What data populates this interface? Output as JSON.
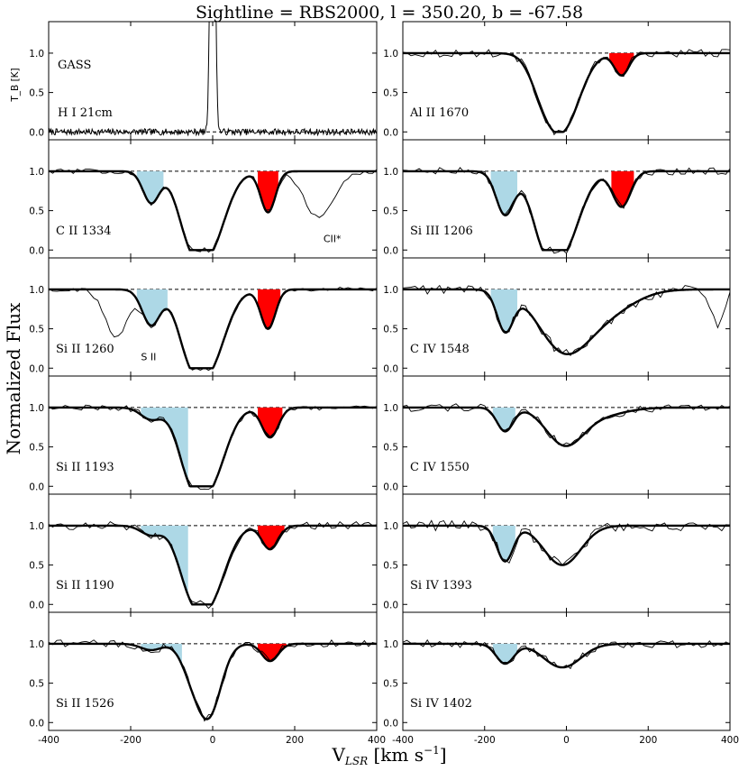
{
  "chart_data": {
    "type": "line",
    "title": "Sightline = RBS2000, l = 350.20, b = -67.58",
    "xlabel": "V_LSR [km s^-1]",
    "ylabel": "Normalized Flux",
    "xlim": [
      -400,
      400
    ],
    "x_ticks": [
      "-400",
      "-200",
      "0",
      "200",
      "400"
    ],
    "panels": [
      {
        "label": "GASS",
        "label2": "H I 21cm",
        "ylabel": "T_B [K]",
        "kind": "hi",
        "ylim": [
          -0.1,
          1.4
        ],
        "y_ticks": [
          "0.0",
          "0.5",
          "1.0"
        ],
        "peak_velocity": 0
      },
      {
        "label": "Al II 1670",
        "kind": "abs",
        "ylim": [
          -0.1,
          1.4
        ],
        "y_ticks": [
          "0.0",
          "0.5",
          "1.0"
        ],
        "components": [
          {
            "v": -10,
            "depth": 0.95,
            "sigma": 42
          },
          {
            "v": -60,
            "depth": 0.25,
            "sigma": 30
          },
          {
            "v": 135,
            "depth": 0.28,
            "sigma": 18
          }
        ],
        "shade": [
          {
            "color": "#ff0000",
            "v1": 105,
            "v2": 165,
            "depth": 0.35
          }
        ],
        "noise": 0.05
      },
      {
        "label": "C II 1334",
        "kind": "abs",
        "ylim": [
          -0.1,
          1.4
        ],
        "y_ticks": [
          "0.0",
          "0.5",
          "1.0"
        ],
        "components": [
          {
            "v": -10,
            "depth": 0.98,
            "sigma": 40
          },
          {
            "v": -60,
            "depth": 0.5,
            "sigma": 30
          },
          {
            "v": -150,
            "depth": 0.4,
            "sigma": 20
          },
          {
            "v": 135,
            "depth": 0.52,
            "sigma": 18
          }
        ],
        "shade": [
          {
            "color": "#add8e6",
            "v1": -185,
            "v2": -120,
            "depth": 0.5
          },
          {
            "color": "#ff0000",
            "v1": 110,
            "v2": 160,
            "depth": 0.55
          }
        ],
        "raw_extra": [
          {
            "v": 260,
            "depth": 0.6,
            "sigma": 35
          }
        ],
        "noise": 0.03,
        "annotation": {
          "text": "CII*",
          "v": 270
        }
      },
      {
        "label": "Si III 1206",
        "kind": "abs",
        "ylim": [
          -0.1,
          1.4
        ],
        "y_ticks": [
          "0.0",
          "0.5",
          "1.0"
        ],
        "components": [
          {
            "v": -10,
            "depth": 0.98,
            "sigma": 42
          },
          {
            "v": -60,
            "depth": 0.5,
            "sigma": 30
          },
          {
            "v": -150,
            "depth": 0.55,
            "sigma": 22
          },
          {
            "v": 135,
            "depth": 0.45,
            "sigma": 22
          }
        ],
        "shade": [
          {
            "color": "#add8e6",
            "v1": -185,
            "v2": -120,
            "depth": 0.7
          },
          {
            "color": "#ff0000",
            "v1": 110,
            "v2": 165,
            "depth": 0.55
          }
        ],
        "noise": 0.05
      },
      {
        "label": "Si II 1260",
        "kind": "abs",
        "ylim": [
          -0.1,
          1.4
        ],
        "y_ticks": [
          "0.0",
          "0.5",
          "1.0"
        ],
        "components": [
          {
            "v": -10,
            "depth": 0.97,
            "sigma": 40
          },
          {
            "v": -60,
            "depth": 0.5,
            "sigma": 30
          },
          {
            "v": -150,
            "depth": 0.45,
            "sigma": 22
          },
          {
            "v": 135,
            "depth": 0.5,
            "sigma": 18
          }
        ],
        "shade": [
          {
            "color": "#add8e6",
            "v1": -185,
            "v2": -110,
            "depth": 0.4
          },
          {
            "color": "#ff0000",
            "v1": 110,
            "v2": 165,
            "depth": 0.6
          }
        ],
        "raw_extra": [
          {
            "v": -235,
            "depth": 0.6,
            "sigma": 28
          }
        ],
        "noise": 0.03,
        "annotation": {
          "text": "S II",
          "v": -175
        }
      },
      {
        "label": "C IV 1548",
        "kind": "abs",
        "ylim": [
          -0.1,
          1.4
        ],
        "y_ticks": [
          "0.0",
          "0.5",
          "1.0"
        ],
        "components": [
          {
            "v": -10,
            "depth": 0.7,
            "sigma": 60
          },
          {
            "v": 90,
            "depth": 0.3,
            "sigma": 70
          },
          {
            "v": -150,
            "depth": 0.5,
            "sigma": 20
          }
        ],
        "shade": [
          {
            "color": "#add8e6",
            "v1": -185,
            "v2": -120,
            "depth": 0.6
          }
        ],
        "raw_extra": [
          {
            "v": 370,
            "depth": 0.45,
            "sigma": 15
          }
        ],
        "noise": 0.06
      },
      {
        "label": "Si II 1193",
        "kind": "abs",
        "ylim": [
          -0.1,
          1.4
        ],
        "y_ticks": [
          "0.0",
          "0.5",
          "1.0"
        ],
        "components": [
          {
            "v": -10,
            "depth": 0.97,
            "sigma": 40
          },
          {
            "v": -60,
            "depth": 0.5,
            "sigma": 30
          },
          {
            "v": -150,
            "depth": 0.15,
            "sigma": 25
          },
          {
            "v": 140,
            "depth": 0.38,
            "sigma": 20
          }
        ],
        "shade": [
          {
            "color": "#add8e6",
            "v1": -175,
            "v2": -60,
            "depth": 0.3
          },
          {
            "color": "#ff0000",
            "v1": 110,
            "v2": 170,
            "depth": 0.45
          }
        ],
        "noise": 0.04
      },
      {
        "label": "C IV 1550",
        "kind": "abs",
        "ylim": [
          -0.1,
          1.4
        ],
        "y_ticks": [
          "0.0",
          "0.5",
          "1.0"
        ],
        "components": [
          {
            "v": -5,
            "depth": 0.45,
            "sigma": 45
          },
          {
            "v": 80,
            "depth": 0.1,
            "sigma": 60
          },
          {
            "v": -150,
            "depth": 0.3,
            "sigma": 20
          }
        ],
        "shade": [
          {
            "color": "#add8e6",
            "v1": -180,
            "v2": -125,
            "depth": 0.4
          }
        ],
        "noise": 0.05
      },
      {
        "label": "Si II 1190",
        "kind": "abs",
        "ylim": [
          -0.1,
          1.4
        ],
        "y_ticks": [
          "0.0",
          "0.5",
          "1.0"
        ],
        "components": [
          {
            "v": -10,
            "depth": 0.95,
            "sigma": 40
          },
          {
            "v": -60,
            "depth": 0.45,
            "sigma": 30
          },
          {
            "v": -150,
            "depth": 0.12,
            "sigma": 25
          },
          {
            "v": 140,
            "depth": 0.3,
            "sigma": 20
          }
        ],
        "shade": [
          {
            "color": "#add8e6",
            "v1": -175,
            "v2": -60,
            "depth": 0.25
          },
          {
            "color": "#ff0000",
            "v1": 110,
            "v2": 175,
            "depth": 0.4
          }
        ],
        "noise": 0.05
      },
      {
        "label": "Si IV 1393",
        "kind": "abs",
        "ylim": [
          -0.1,
          1.4
        ],
        "y_ticks": [
          "0.0",
          "0.5",
          "1.0"
        ],
        "components": [
          {
            "v": -10,
            "depth": 0.5,
            "sigma": 45
          },
          {
            "v": -150,
            "depth": 0.45,
            "sigma": 20
          }
        ],
        "shade": [
          {
            "color": "#add8e6",
            "v1": -180,
            "v2": -125,
            "depth": 0.6
          }
        ],
        "noise": 0.07
      },
      {
        "label": "Si II 1526",
        "kind": "abs",
        "ylim": [
          -0.1,
          1.4
        ],
        "y_ticks": [
          "0.0",
          "0.5",
          "1.0"
        ],
        "components": [
          {
            "v": -10,
            "depth": 0.9,
            "sigma": 30
          },
          {
            "v": -55,
            "depth": 0.25,
            "sigma": 25
          },
          {
            "v": -150,
            "depth": 0.08,
            "sigma": 25
          },
          {
            "v": 140,
            "depth": 0.22,
            "sigma": 20
          }
        ],
        "shade": [
          {
            "color": "#add8e6",
            "v1": -175,
            "v2": -75,
            "depth": 0.15
          },
          {
            "color": "#ff0000",
            "v1": 110,
            "v2": 180,
            "depth": 0.3
          }
        ],
        "noise": 0.05
      },
      {
        "label": "Si IV 1402",
        "kind": "abs",
        "ylim": [
          -0.1,
          1.4
        ],
        "y_ticks": [
          "0.0",
          "0.5",
          "1.0"
        ],
        "components": [
          {
            "v": -10,
            "depth": 0.3,
            "sigma": 45
          },
          {
            "v": -150,
            "depth": 0.25,
            "sigma": 22
          }
        ],
        "shade": [
          {
            "color": "#add8e6",
            "v1": -180,
            "v2": -120,
            "depth": 0.3
          }
        ],
        "noise": 0.05
      }
    ]
  }
}
